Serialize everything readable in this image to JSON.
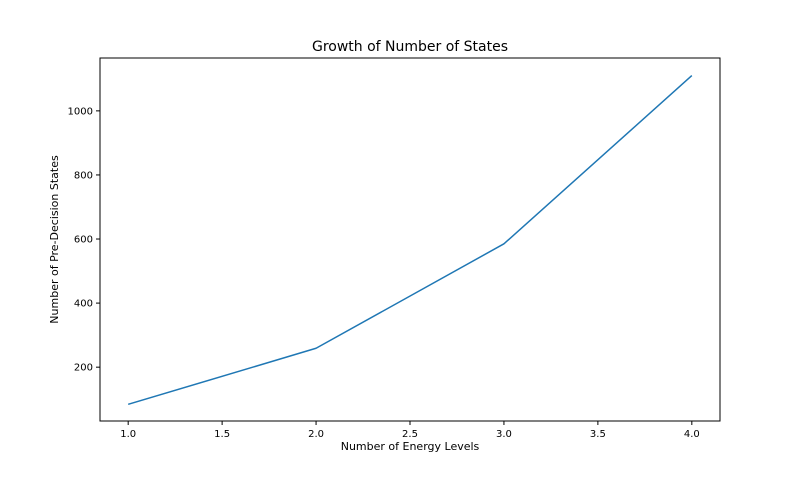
{
  "chart_data": {
    "type": "line",
    "title": "Growth of Number of States",
    "xlabel": "Number of Energy Levels",
    "ylabel": "Number of Pre-Decision States",
    "xlim": [
      0.85,
      4.15
    ],
    "ylim": [
      32,
      1165
    ],
    "x_ticks": [
      1.0,
      1.5,
      2.0,
      2.5,
      3.0,
      3.5,
      4.0
    ],
    "x_tick_labels": [
      "1.0",
      "1.5",
      "2.0",
      "2.5",
      "3.0",
      "3.5",
      "4.0"
    ],
    "y_ticks": [
      200,
      400,
      600,
      800,
      1000
    ],
    "y_tick_labels": [
      "200",
      "400",
      "600",
      "800",
      "1000"
    ],
    "grid": false,
    "series": [
      {
        "x": [
          1,
          2,
          3,
          4
        ],
        "values": [
          84,
          259,
          585,
          1110
        ],
        "color": "#1f77b4"
      }
    ]
  }
}
